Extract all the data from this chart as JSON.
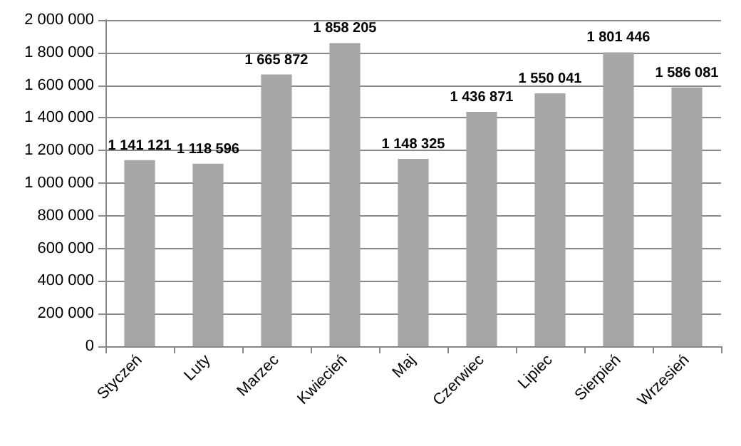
{
  "chart_data": {
    "type": "bar",
    "categories": [
      "Styczeń",
      "Luty",
      "Marzec",
      "Kwiecień",
      "Maj",
      "Czerwiec",
      "Lipiec",
      "Sierpień",
      "Wrzesień"
    ],
    "values": [
      1141121,
      1118596,
      1665872,
      1858205,
      1148325,
      1436871,
      1550041,
      1801446,
      1586081
    ],
    "value_labels": [
      "1 141 121",
      "1 118 596",
      "1 665 872",
      "1 858 205",
      "1 148 325",
      "1 436 871",
      "1 550 041",
      "1 801 446",
      "1 586 081"
    ],
    "color": "#a6a6a6",
    "ylim": [
      0,
      2000000
    ],
    "yticks": [
      {
        "value": 0,
        "label": "0"
      },
      {
        "value": 200000,
        "label": "200 000"
      },
      {
        "value": 400000,
        "label": "400 000"
      },
      {
        "value": 600000,
        "label": "600 000"
      },
      {
        "value": 800000,
        "label": "800 000"
      },
      {
        "value": 1000000,
        "label": "1 000 000"
      },
      {
        "value": 1200000,
        "label": "1 200 000"
      },
      {
        "value": 1400000,
        "label": "1 400 000"
      },
      {
        "value": 1600000,
        "label": "1 600 000"
      },
      {
        "value": 1800000,
        "label": "1 800 000"
      },
      {
        "value": 2000000,
        "label": "2 000 000"
      }
    ],
    "grid": "y"
  }
}
